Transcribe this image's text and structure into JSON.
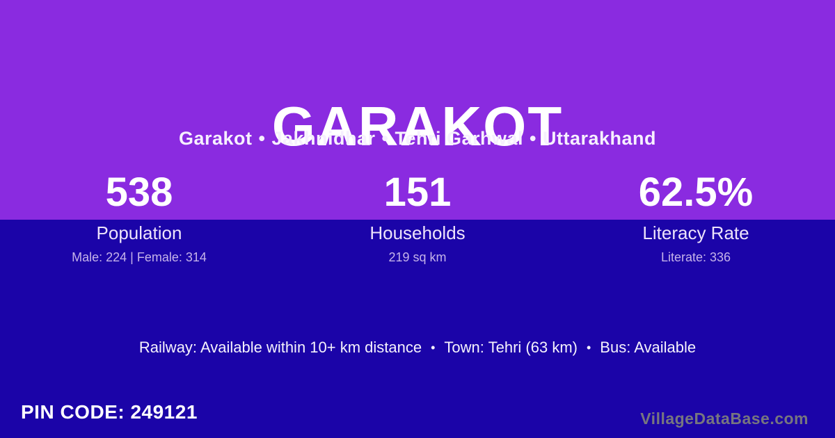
{
  "header": {
    "title": "GARAKOT",
    "breadcrumb": [
      "Garakot",
      "Jakhnidhar",
      "Tehri Garhwal",
      "Uttarakhand"
    ],
    "separator": "•"
  },
  "stats": [
    {
      "value": "538",
      "label": "Population",
      "detail": "Male: 224 | Female: 314"
    },
    {
      "value": "151",
      "label": "Households",
      "detail": "219 sq km"
    },
    {
      "value": "62.5%",
      "label": "Literacy Rate",
      "detail": "Literate: 336"
    }
  ],
  "amenities": {
    "railway": "Railway: Available within 10+ km distance",
    "town": "Town: Tehri (63 km)",
    "bus": "Bus: Available",
    "separator": "•"
  },
  "footer": {
    "pin_code_label": "PIN CODE:",
    "pin_code_value": "249121",
    "watermark": "VillageDataBase.com"
  },
  "colors": {
    "top_background": "#8A2BE0",
    "bottom_background": "#1B04A8",
    "heading_text": "#FFFFFF",
    "label_text": "#EDE3FB",
    "muted_text": "#C5B3E9",
    "watermark_text": "#77767F"
  }
}
